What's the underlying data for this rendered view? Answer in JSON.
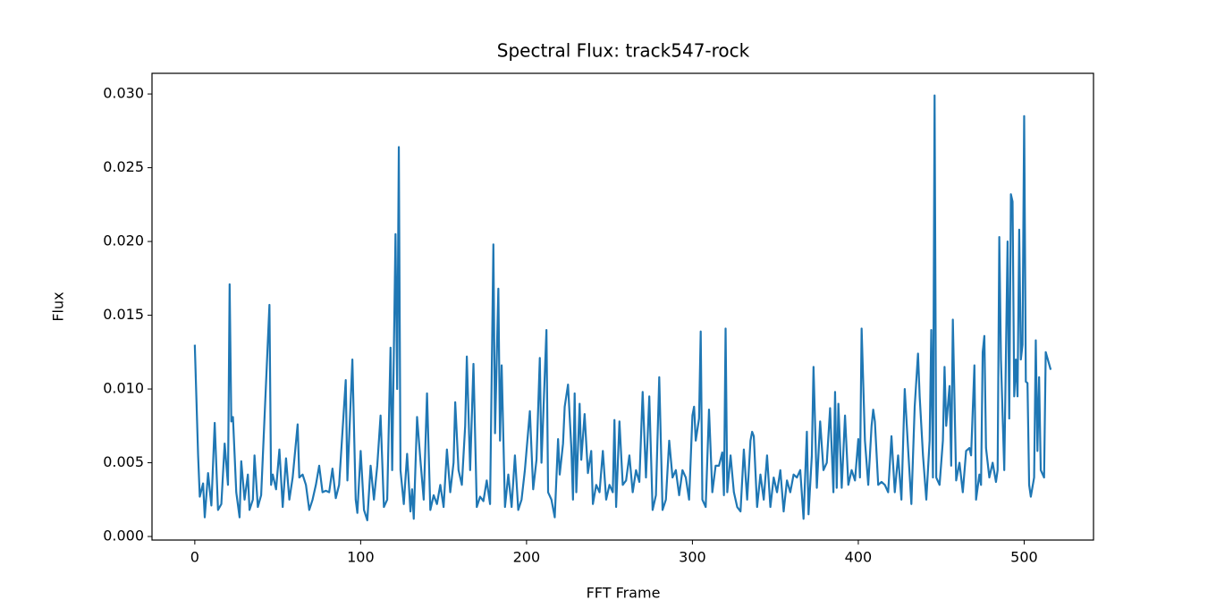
{
  "chart_data": {
    "type": "line",
    "title": "Spectral Flux: track547-rock",
    "xlabel": "FFT Frame",
    "ylabel": "Flux",
    "xlim": [
      -25.8,
      541.8
    ],
    "ylim": [
      -0.00024,
      0.0314
    ],
    "xticks": [
      0,
      100,
      200,
      300,
      400,
      500
    ],
    "yticks": [
      {
        "value": 0,
        "label": "0.000"
      },
      {
        "value": 0.005,
        "label": "0.005"
      },
      {
        "value": 0.01,
        "label": "0.010"
      },
      {
        "value": 0.015,
        "label": "0.015"
      },
      {
        "value": 0.02,
        "label": "0.020"
      },
      {
        "value": 0.025,
        "label": "0.025"
      },
      {
        "value": 0.03,
        "label": "0.030"
      }
    ],
    "color": "#1f77b4",
    "x": [
      0,
      2,
      3,
      5,
      6,
      8,
      10,
      12,
      14,
      16,
      18,
      20,
      21,
      22,
      23,
      25,
      27,
      28,
      30,
      32,
      33,
      35,
      36,
      38,
      40,
      45,
      46,
      47,
      49,
      51,
      53,
      55,
      57,
      59,
      62,
      63,
      65,
      67,
      69,
      71,
      73,
      75,
      77,
      79,
      81,
      83,
      85,
      87,
      91,
      92,
      95,
      97,
      98,
      100,
      102,
      104,
      106,
      108,
      110,
      112,
      114,
      116,
      118,
      119,
      121,
      122,
      123,
      124,
      126,
      128,
      130,
      131,
      132,
      134,
      136,
      138,
      140,
      142,
      144,
      146,
      148,
      150,
      152,
      154,
      156,
      157,
      159,
      161,
      163,
      164,
      166,
      168,
      170,
      172,
      174,
      176,
      178,
      180,
      181,
      183,
      184,
      185,
      187,
      189,
      191,
      193,
      195,
      197,
      199,
      202,
      204,
      206,
      208,
      209,
      212,
      213,
      215,
      217,
      219,
      220,
      222,
      223,
      225,
      227,
      228,
      229,
      230,
      232,
      233,
      235,
      237,
      239,
      240,
      242,
      244,
      246,
      248,
      250,
      252,
      253,
      254,
      256,
      258,
      260,
      262,
      264,
      266,
      268,
      270,
      272,
      274,
      276,
      278,
      280,
      282,
      284,
      286,
      288,
      290,
      292,
      294,
      296,
      298,
      300,
      301,
      302,
      304,
      305,
      306,
      308,
      310,
      312,
      314,
      316,
      318,
      319,
      320,
      321,
      323,
      325,
      327,
      329,
      331,
      333,
      335,
      336,
      337,
      339,
      341,
      343,
      345,
      347,
      349,
      351,
      353,
      355,
      357,
      359,
      361,
      363,
      365,
      367,
      369,
      370,
      372,
      373,
      375,
      377,
      379,
      381,
      383,
      385,
      386,
      387,
      388,
      390,
      392,
      394,
      396,
      398,
      400,
      401,
      402,
      404,
      406,
      408,
      409,
      410,
      412,
      414,
      416,
      418,
      420,
      422,
      424,
      426,
      428,
      430,
      432,
      434,
      436,
      437,
      439,
      441,
      443,
      444,
      445,
      446,
      447,
      449,
      451,
      452,
      453,
      455,
      456,
      457,
      459,
      461,
      463,
      465,
      467,
      468,
      470,
      471,
      473,
      474,
      475,
      476,
      477,
      479,
      481,
      483,
      484,
      485,
      486,
      488,
      490,
      491,
      492,
      493,
      494,
      495,
      496,
      497,
      498,
      499,
      500,
      501,
      502,
      503,
      504,
      506,
      507,
      508,
      509,
      510,
      512,
      513,
      516
    ],
    "values": [
      0.013,
      0.0055,
      0.0027,
      0.0036,
      0.0013,
      0.0043,
      0.0021,
      0.0077,
      0.0018,
      0.0022,
      0.0063,
      0.0035,
      0.0171,
      0.0078,
      0.0081,
      0.003,
      0.0013,
      0.0051,
      0.0025,
      0.0042,
      0.0018,
      0.0025,
      0.0055,
      0.002,
      0.0028,
      0.0157,
      0.0035,
      0.0042,
      0.0032,
      0.0059,
      0.002,
      0.0053,
      0.0025,
      0.004,
      0.0076,
      0.004,
      0.0042,
      0.0035,
      0.0018,
      0.0025,
      0.0035,
      0.0048,
      0.003,
      0.0031,
      0.003,
      0.0046,
      0.0026,
      0.0035,
      0.0106,
      0.0038,
      0.012,
      0.0025,
      0.0016,
      0.0058,
      0.0018,
      0.0011,
      0.0048,
      0.0025,
      0.0048,
      0.0082,
      0.002,
      0.0025,
      0.0128,
      0.0045,
      0.0205,
      0.01,
      0.0264,
      0.0045,
      0.0022,
      0.0056,
      0.0017,
      0.0032,
      0.0012,
      0.0081,
      0.0052,
      0.0025,
      0.0097,
      0.0018,
      0.0028,
      0.0022,
      0.0035,
      0.002,
      0.0059,
      0.003,
      0.005,
      0.0091,
      0.0045,
      0.0035,
      0.0075,
      0.0122,
      0.0045,
      0.0117,
      0.002,
      0.0027,
      0.0024,
      0.0038,
      0.0022,
      0.0198,
      0.007,
      0.0168,
      0.0065,
      0.0116,
      0.002,
      0.0042,
      0.002,
      0.0055,
      0.0018,
      0.0025,
      0.0045,
      0.0085,
      0.0032,
      0.0052,
      0.0121,
      0.005,
      0.014,
      0.003,
      0.0025,
      0.0013,
      0.0066,
      0.0042,
      0.0063,
      0.0088,
      0.0103,
      0.006,
      0.0025,
      0.0097,
      0.003,
      0.009,
      0.0052,
      0.0083,
      0.0043,
      0.0058,
      0.0022,
      0.0035,
      0.003,
      0.0058,
      0.0025,
      0.0035,
      0.003,
      0.0079,
      0.002,
      0.0078,
      0.0035,
      0.0038,
      0.0055,
      0.003,
      0.0045,
      0.0037,
      0.0098,
      0.004,
      0.0095,
      0.0018,
      0.0028,
      0.0108,
      0.0018,
      0.0025,
      0.0065,
      0.004,
      0.0045,
      0.0028,
      0.0045,
      0.004,
      0.0025,
      0.0082,
      0.0088,
      0.0065,
      0.008,
      0.0139,
      0.0025,
      0.002,
      0.0086,
      0.003,
      0.0048,
      0.0048,
      0.0057,
      0.0028,
      0.0141,
      0.003,
      0.0055,
      0.003,
      0.002,
      0.0017,
      0.0059,
      0.0025,
      0.0065,
      0.0071,
      0.0068,
      0.002,
      0.0042,
      0.0025,
      0.0055,
      0.002,
      0.004,
      0.003,
      0.0045,
      0.0017,
      0.0038,
      0.003,
      0.0042,
      0.004,
      0.0045,
      0.0012,
      0.0071,
      0.0015,
      0.0055,
      0.0115,
      0.0033,
      0.0078,
      0.0045,
      0.005,
      0.0087,
      0.003,
      0.0098,
      0.0033,
      0.009,
      0.0033,
      0.0082,
      0.0035,
      0.0045,
      0.0038,
      0.0066,
      0.004,
      0.0141,
      0.0065,
      0.0035,
      0.0075,
      0.0086,
      0.0078,
      0.0035,
      0.0037,
      0.0035,
      0.003,
      0.0068,
      0.003,
      0.0055,
      0.0025,
      0.01,
      0.006,
      0.0022,
      0.0088,
      0.0124,
      0.0095,
      0.0055,
      0.0025,
      0.0065,
      0.014,
      0.004,
      0.0299,
      0.004,
      0.0035,
      0.0065,
      0.0115,
      0.0075,
      0.0102,
      0.0048,
      0.0147,
      0.0038,
      0.005,
      0.003,
      0.0058,
      0.006,
      0.0055,
      0.0116,
      0.0025,
      0.0042,
      0.0035,
      0.0125,
      0.0136,
      0.006,
      0.004,
      0.005,
      0.0037,
      0.0045,
      0.0203,
      0.012,
      0.0045,
      0.02,
      0.008,
      0.0232,
      0.0227,
      0.0095,
      0.012,
      0.0095,
      0.0208,
      0.012,
      0.013,
      0.0285,
      0.0105,
      0.0104,
      0.0035,
      0.0027,
      0.004,
      0.0133,
      0.0058,
      0.0108,
      0.0045,
      0.004,
      0.0125,
      0.0113
    ]
  }
}
